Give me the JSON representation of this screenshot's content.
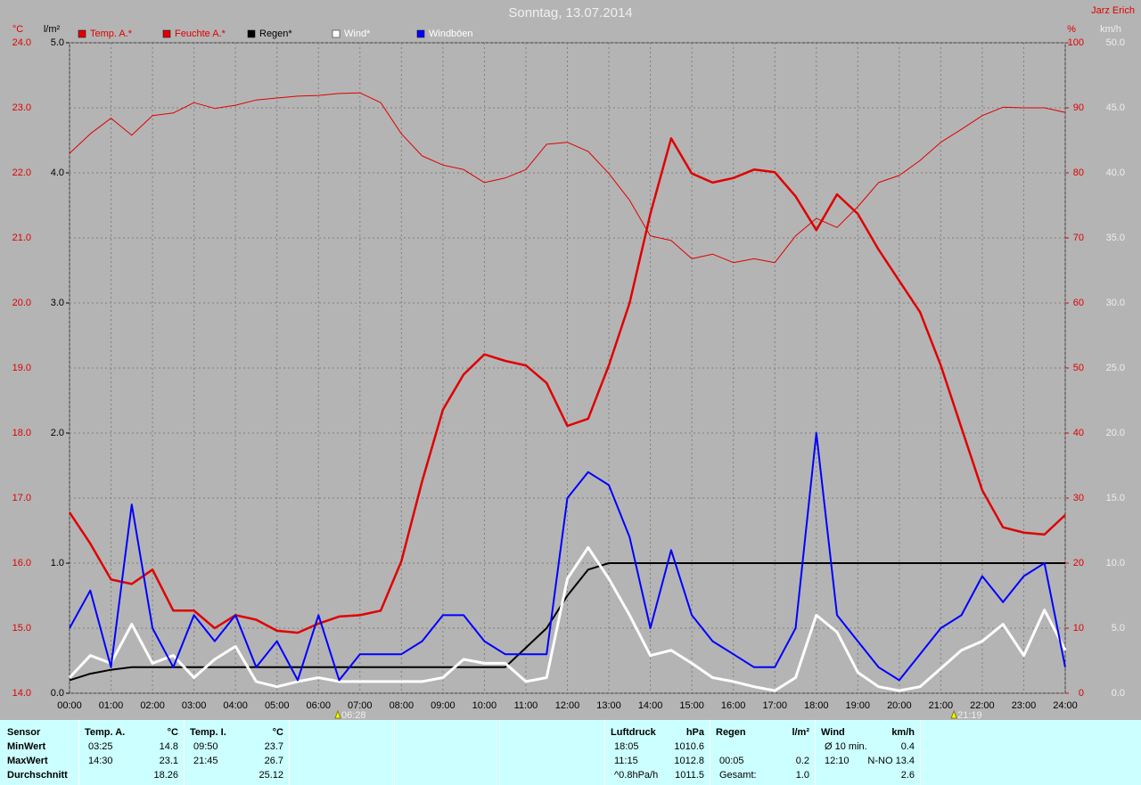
{
  "chart_data": {
    "type": "line",
    "title": "Sonntag, 13.07.2014",
    "author": "Jarz Erich",
    "y_label": "°C",
    "y2_label": "%",
    "y3_label": "l/m²",
    "y4_label": "km/h",
    "x": [
      0,
      0.5,
      1,
      1.5,
      2,
      2.5,
      3,
      3.5,
      4,
      4.5,
      5,
      5.5,
      6,
      6.5,
      7,
      7.5,
      8,
      8.5,
      9,
      9.5,
      10,
      10.5,
      11,
      11.5,
      12,
      12.5,
      13,
      13.5,
      14,
      14.5,
      15,
      15.5,
      16,
      16.5,
      17,
      17.5,
      18,
      18.5,
      19,
      19.5,
      20,
      20.5,
      21,
      21.5,
      22,
      22.5,
      23,
      23.5,
      24
    ],
    "xlim": [
      0,
      24
    ],
    "xticks": [
      {
        "value": 0,
        "label": "00:00"
      },
      {
        "value": 1,
        "label": "01:00"
      },
      {
        "value": 2,
        "label": "02:00"
      },
      {
        "value": 3,
        "label": "03:00"
      },
      {
        "value": 4,
        "label": "04:00"
      },
      {
        "value": 5,
        "label": "05:00"
      },
      {
        "value": 6,
        "label": "06:00"
      },
      {
        "value": 7,
        "label": "07:00"
      },
      {
        "value": 8,
        "label": "08:00"
      },
      {
        "value": 9,
        "label": "09:00"
      },
      {
        "value": 10,
        "label": "10:00"
      },
      {
        "value": 11,
        "label": "11:00"
      },
      {
        "value": 12,
        "label": "12:00"
      },
      {
        "value": 13,
        "label": "13:00"
      },
      {
        "value": 14,
        "label": "14:00"
      },
      {
        "value": 15,
        "label": "15:00"
      },
      {
        "value": 16,
        "label": "16:00"
      },
      {
        "value": 17,
        "label": "17:00"
      },
      {
        "value": 18,
        "label": "18:00"
      },
      {
        "value": 19,
        "label": "19:00"
      },
      {
        "value": 20,
        "label": "20:00"
      },
      {
        "value": 21,
        "label": "21:00"
      },
      {
        "value": 22,
        "label": "22:00"
      },
      {
        "value": 23,
        "label": "23:00"
      },
      {
        "value": 24,
        "label": "24:00"
      }
    ],
    "ylim": [
      14,
      24
    ],
    "yticks": [
      {
        "value": 14,
        "label": "14.0"
      },
      {
        "value": 15,
        "label": "15.0"
      },
      {
        "value": 16,
        "label": "16.0"
      },
      {
        "value": 17,
        "label": "17.0"
      },
      {
        "value": 18,
        "label": "18.0"
      },
      {
        "value": 19,
        "label": "19.0"
      },
      {
        "value": 20,
        "label": "20.0"
      },
      {
        "value": 21,
        "label": "21.0"
      },
      {
        "value": 22,
        "label": "22.0"
      },
      {
        "value": 23,
        "label": "23.0"
      },
      {
        "value": 24,
        "label": "24.0"
      }
    ],
    "y2lim": [
      0,
      100
    ],
    "y2ticks": [
      0,
      10,
      20,
      30,
      40,
      50,
      60,
      70,
      80,
      90,
      100
    ],
    "y3lim": [
      0,
      5
    ],
    "y3ticks": [
      {
        "value": 0,
        "label": "0.0"
      },
      {
        "value": 1,
        "label": "1.0"
      },
      {
        "value": 2,
        "label": "2.0"
      },
      {
        "value": 3,
        "label": "3.0"
      },
      {
        "value": 4,
        "label": "4.0"
      },
      {
        "value": 5,
        "label": "5.0"
      }
    ],
    "y4lim": [
      0,
      50
    ],
    "y4ticks": [
      {
        "value": 0,
        "label": "0.0"
      },
      {
        "value": 5,
        "label": "5.0"
      },
      {
        "value": 10,
        "label": "10.0"
      },
      {
        "value": 15,
        "label": "15.0"
      },
      {
        "value": 20,
        "label": "20.0"
      },
      {
        "value": 25,
        "label": "25.0"
      },
      {
        "value": 30,
        "label": "30.0"
      },
      {
        "value": 35,
        "label": "35.0"
      },
      {
        "value": 40,
        "label": "40.0"
      },
      {
        "value": 45,
        "label": "45.0"
      },
      {
        "value": 50,
        "label": "50.0"
      }
    ],
    "grid": true,
    "legend": "top",
    "series": [
      {
        "name": "Temp. A.*",
        "color": "#e00000",
        "axis": "y",
        "values": [
          16.78,
          16.3,
          15.75,
          15.68,
          15.9,
          15.27,
          15.27,
          15.0,
          15.2,
          15.13,
          14.96,
          14.93,
          15.07,
          15.18,
          15.2,
          15.27,
          16.03,
          17.26,
          18.36,
          18.9,
          19.21,
          19.11,
          19.04,
          18.77,
          18.11,
          18.22,
          19.04,
          20.0,
          21.37,
          22.53,
          21.99,
          21.85,
          21.92,
          22.05,
          22.01,
          21.64,
          21.12,
          21.67,
          21.37,
          20.82,
          20.34,
          19.86,
          19.04,
          18.08,
          17.12,
          16.55,
          16.47,
          16.44,
          16.74
        ]
      },
      {
        "name": "Feuchte A.*",
        "color": "#e00000",
        "axis": "y2",
        "values": [
          83.0,
          86.0,
          88.4,
          85.8,
          88.8,
          89.2,
          90.8,
          89.9,
          90.4,
          91.2,
          91.5,
          91.8,
          91.9,
          92.2,
          92.3,
          90.8,
          86.0,
          82.6,
          81.2,
          80.5,
          78.5,
          79.2,
          80.5,
          84.4,
          84.7,
          83.3,
          79.9,
          75.8,
          70.3,
          69.6,
          66.8,
          67.5,
          66.2,
          66.8,
          66.2,
          70.3,
          73.0,
          71.6,
          74.8,
          78.5,
          79.6,
          81.9,
          84.7,
          86.7,
          88.8,
          90.1,
          90.0,
          90.0,
          89.3
        ]
      },
      {
        "name": "Regen*",
        "color": "#000000",
        "axis": "y3",
        "values": [
          0.1,
          0.15,
          0.18,
          0.2,
          0.2,
          0.2,
          0.2,
          0.2,
          0.2,
          0.2,
          0.2,
          0.2,
          0.2,
          0.2,
          0.2,
          0.2,
          0.2,
          0.2,
          0.2,
          0.2,
          0.2,
          0.2,
          0.35,
          0.5,
          0.75,
          0.95,
          1.0,
          1.0,
          1.0,
          1.0,
          1.0,
          1.0,
          1.0,
          1.0,
          1.0,
          1.0,
          1.0,
          1.0,
          1.0,
          1.0,
          1.0,
          1.0,
          1.0,
          1.0,
          1.0,
          1.0,
          1.0,
          1.0,
          1.0
        ]
      },
      {
        "name": "Wind*",
        "color": "#ffffff",
        "axis": "y4",
        "values": [
          1.2,
          2.9,
          2.3,
          5.3,
          2.3,
          2.9,
          1.2,
          2.6,
          3.6,
          0.9,
          0.5,
          0.9,
          1.2,
          0.9,
          0.9,
          0.9,
          0.9,
          0.9,
          1.2,
          2.6,
          2.3,
          2.3,
          0.9,
          1.2,
          8.8,
          11.2,
          8.8,
          6.0,
          2.9,
          3.3,
          2.3,
          1.2,
          0.9,
          0.5,
          0.2,
          1.2,
          6.0,
          4.7,
          1.6,
          0.5,
          0.2,
          0.5,
          1.9,
          3.3,
          4.0,
          5.3,
          2.9,
          6.4,
          3.3
        ]
      },
      {
        "name": "Windböen",
        "color": "#0000ff",
        "axis": "y4",
        "values": [
          5.0,
          7.9,
          2.0,
          14.5,
          5.0,
          2.0,
          6.0,
          4.0,
          6.0,
          2.0,
          4.0,
          1.0,
          6.0,
          1.0,
          3.0,
          3.0,
          3.0,
          4.0,
          6.0,
          6.0,
          4.0,
          3.0,
          3.0,
          3.0,
          15.0,
          17.0,
          16.0,
          12.0,
          5.0,
          11.0,
          6.0,
          4.0,
          3.0,
          2.0,
          2.0,
          5.0,
          20.0,
          6.0,
          4.0,
          2.0,
          1.0,
          3.0,
          5.0,
          6.0,
          9.0,
          7.0,
          9.0,
          10.0,
          2.0
        ]
      }
    ],
    "annotations": [
      {
        "x": 6.467,
        "label": "06:28"
      },
      {
        "x": 21.317,
        "label": "21:19"
      }
    ]
  },
  "stats_table": {
    "sensor": {
      "title": "Sensor",
      "rows": [
        "MinWert",
        "MaxWert",
        "Durchschnitt"
      ]
    },
    "columns": [
      {
        "title": "Temp. A.",
        "unit": "°C",
        "min": {
          "time": "03:25",
          "value": "14.8"
        },
        "max": {
          "time": "14:30",
          "value": "23.1"
        },
        "avg": {
          "value": "18.26"
        }
      },
      {
        "title": "Temp. I.",
        "unit": "°C",
        "min": {
          "time": "09:50",
          "value": "23.7"
        },
        "max": {
          "time": "21:45",
          "value": "26.7"
        },
        "avg": {
          "value": "25.12"
        }
      },
      {},
      {},
      {},
      {
        "title": "Luftdruck",
        "unit": "hPa",
        "min": {
          "time": "18:05",
          "value": "1010.6"
        },
        "max": {
          "time": "11:15",
          "value": "1012.8"
        },
        "avg": {
          "time": "^0.8hPa/h",
          "value": "1011.5"
        }
      },
      {
        "title": "Regen",
        "unit": "l/m²",
        "max": {
          "time": "00:05",
          "value": "0.2"
        },
        "avg": {
          "time": "Gesamt:",
          "value": "1.0"
        }
      },
      {
        "title": "Wind",
        "unit": "km/h",
        "min": {
          "time": "Ø 10 min.",
          "value": "0.4"
        },
        "max": {
          "time": "12:10",
          "value": "N-NO 13.4"
        },
        "avg": {
          "value": "2.6"
        }
      }
    ]
  }
}
